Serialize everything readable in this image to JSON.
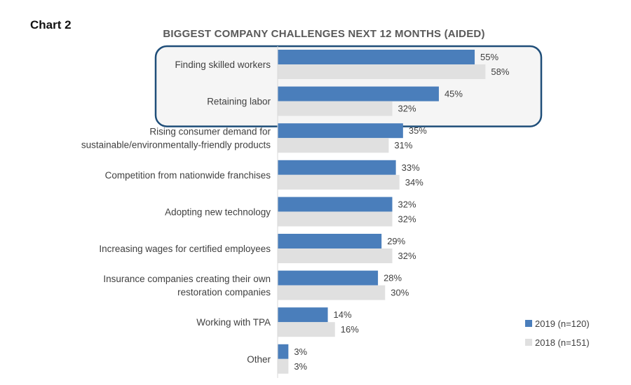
{
  "chart_label": "Chart 2",
  "chart_data": {
    "type": "bar",
    "orientation": "horizontal",
    "title": "BIGGEST COMPANY CHALLENGES NEXT 12 MONTHS (AIDED)",
    "categories": [
      [
        "Finding skilled workers"
      ],
      [
        "Retaining labor"
      ],
      [
        "Rising consumer demand for",
        "sustainable/environmentally-friendly products"
      ],
      [
        "Competition from nationwide franchises"
      ],
      [
        "Adopting new technology"
      ],
      [
        "Increasing wages for certified employees"
      ],
      [
        "Insurance companies creating their own",
        "restoration companies"
      ],
      [
        "Working with TPA"
      ],
      [
        "Other"
      ]
    ],
    "series": [
      {
        "name": "2019 (n=120)",
        "color": "#4a7ebb",
        "values": [
          55,
          45,
          35,
          33,
          32,
          29,
          28,
          14,
          3
        ]
      },
      {
        "name": "2018 (n=151)",
        "color": "#e0e0e0",
        "values": [
          58,
          32,
          31,
          34,
          32,
          32,
          30,
          16,
          3
        ]
      }
    ],
    "value_suffix": "%",
    "highlighted_categories": [
      0,
      1
    ],
    "highlight_color": "#1f4e79",
    "legend_position": "bottom-right",
    "grid": false,
    "xlim": [
      0,
      100
    ]
  }
}
